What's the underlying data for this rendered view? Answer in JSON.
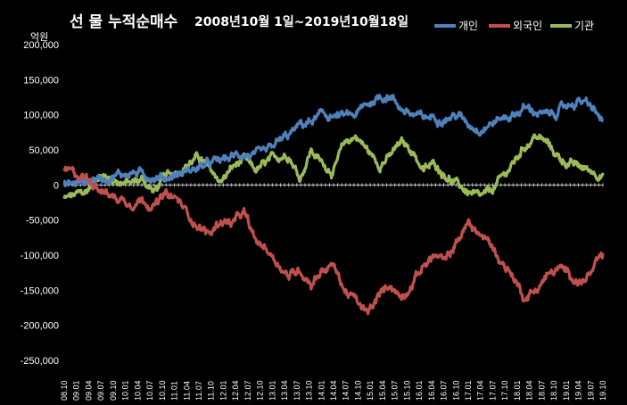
{
  "chart_data": {
    "type": "line",
    "title_main": "선 물 누적순매수",
    "title_period": "2008년10월 1일~2019년10월18일",
    "unit_label": "억원",
    "ylim": [
      -250000,
      200000
    ],
    "y_ticks": [
      200000,
      150000,
      100000,
      50000,
      0,
      -50000,
      -100000,
      -150000,
      -200000,
      -250000
    ],
    "y_tick_labels": [
      "200,000",
      "150,000",
      "100,000",
      "50,000",
      "0",
      "-50,000",
      "-100,000",
      "-150,000",
      "-200,000",
      "-250,000"
    ],
    "x_tick_labels": [
      "08.10",
      "09.01",
      "09.04",
      "09.07",
      "09.10",
      "10.01",
      "10.04",
      "10.07",
      "10.10",
      "11.01",
      "11.04",
      "11.07",
      "11.10",
      "12.01",
      "12.04",
      "12.07",
      "12.10",
      "13.01",
      "13.04",
      "13.07",
      "13.10",
      "14.01",
      "14.04",
      "14.07",
      "14.10",
      "15.01",
      "15.04",
      "15.07",
      "15.10",
      "16.01",
      "16.04",
      "16.07",
      "16.10",
      "17.01",
      "17.04",
      "17.07",
      "17.10",
      "18.01",
      "18.04",
      "18.07",
      "18.10",
      "19.01",
      "19.04",
      "19.07",
      "19.10"
    ],
    "legend_position": "top-right",
    "grid": false,
    "series": [
      {
        "name": "개인",
        "color": "#4f81bd",
        "values": [
          0,
          3000,
          6000,
          9000,
          12000,
          15000,
          18000,
          15000,
          12000,
          10000,
          15000,
          20000,
          25000,
          30000,
          35000,
          40000,
          45000,
          40000,
          45000,
          60000,
          70000,
          85000,
          90000,
          100000,
          98000,
          97000,
          100000,
          115000,
          125000,
          128000,
          110000,
          100000,
          95000,
          98000,
          95000,
          100000,
          88000,
          80000,
          88000,
          95000,
          100000,
          110000,
          105000,
          98000,
          105000,
          115000,
          120000,
          110000,
          90000
        ]
      },
      {
        "name": "외국인",
        "color": "#c0504d",
        "values": [
          20000,
          15000,
          10000,
          0,
          -15000,
          -20000,
          -25000,
          -20000,
          -30000,
          -15000,
          -20000,
          -40000,
          -60000,
          -70000,
          -50000,
          -55000,
          -40000,
          -80000,
          -90000,
          -110000,
          -130000,
          -120000,
          -140000,
          -120000,
          -115000,
          -150000,
          -165000,
          -185000,
          -160000,
          -140000,
          -160000,
          -140000,
          -115000,
          -100000,
          -110000,
          -80000,
          -55000,
          -70000,
          -85000,
          -110000,
          -130000,
          -160000,
          -150000,
          -130000,
          -120000,
          -125000,
          -140000,
          -125000,
          -100000
        ]
      },
      {
        "name": "기관",
        "color": "#9bbb59",
        "values": [
          -20000,
          -15000,
          -10000,
          15000,
          10000,
          5000,
          2000,
          8000,
          -10000,
          10000,
          20000,
          30000,
          40000,
          20000,
          5000,
          25000,
          35000,
          20000,
          30000,
          40000,
          45000,
          10000,
          50000,
          30000,
          20000,
          60000,
          70000,
          50000,
          30000,
          40000,
          60000,
          50000,
          20000,
          30000,
          15000,
          0,
          -10000,
          -20000,
          -10000,
          10000,
          30000,
          55000,
          70000,
          60000,
          40000,
          30000,
          25000,
          20000,
          15000
        ]
      }
    ]
  }
}
